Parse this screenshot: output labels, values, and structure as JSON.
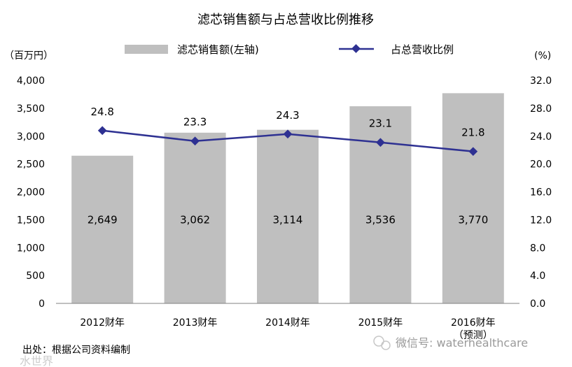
{
  "chart_data": {
    "type": "bar",
    "title": "滤芯销售额与占总营收比例推移",
    "left_unit": "（百万円）",
    "right_unit": "(%)",
    "categories": [
      "2012财年",
      "2013财年",
      "2014财年",
      "2015财年",
      "2016财年"
    ],
    "category_notes": [
      "",
      "",
      "",
      "",
      "（预测）"
    ],
    "series": [
      {
        "name": "滤芯销售额(左轴)",
        "type": "bar",
        "axis": "left",
        "color": "#bfbfbf",
        "values": [
          2649,
          3062,
          3114,
          3536,
          3770
        ],
        "labels": [
          "2,649",
          "3,062",
          "3,114",
          "3,536",
          "3,770"
        ]
      },
      {
        "name": "占总营收比例",
        "type": "line",
        "axis": "right",
        "color": "#2e3192",
        "values": [
          24.8,
          23.3,
          24.3,
          23.1,
          21.8
        ],
        "labels": [
          "24.8",
          "23.3",
          "24.3",
          "23.1",
          "21.8"
        ]
      }
    ],
    "y_left": {
      "ylim": [
        0,
        4000
      ],
      "ticks": [
        0,
        500,
        1000,
        1500,
        2000,
        2500,
        3000,
        3500,
        4000
      ],
      "tick_labels": [
        "0",
        "500",
        "1,000",
        "1,500",
        "2,000",
        "2,500",
        "3,000",
        "3,500",
        "4,000"
      ]
    },
    "y_right": {
      "ylim": [
        0,
        32
      ],
      "ticks": [
        0,
        4,
        8,
        12,
        16,
        20,
        24,
        28,
        32
      ],
      "tick_labels": [
        "0.0",
        "4.0",
        "8.0",
        "12.0",
        "16.0",
        "20.0",
        "24.0",
        "28.0",
        "32.0"
      ]
    },
    "grid": false,
    "legend_position": "top"
  },
  "footer": {
    "source": "出处：根据公司资料编制",
    "watermark": "微信号: waterhealthcare",
    "watermark_left": "水世界"
  }
}
